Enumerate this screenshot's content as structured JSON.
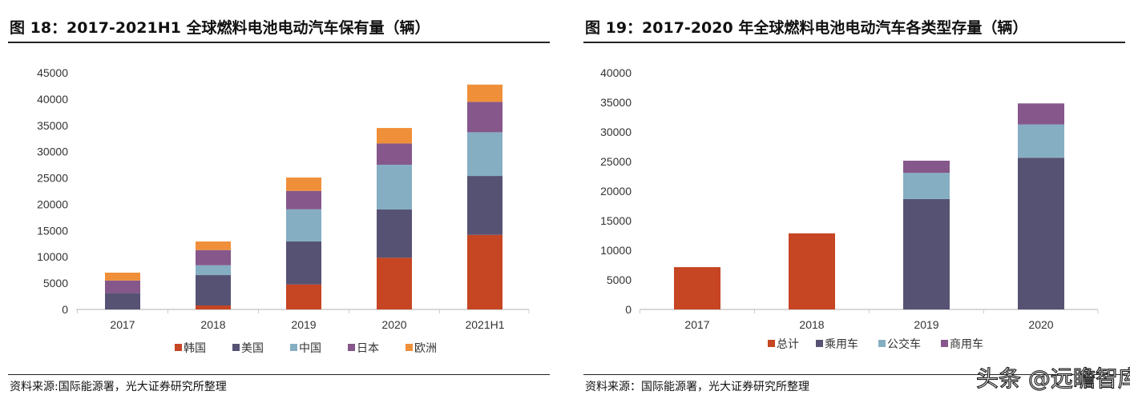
{
  "charts": [
    {
      "title": "图 18：2017-2021H1 全球燃料电池电动汽车保有量（辆）",
      "source": "资料来源:国际能源署，光大证券研究所整理"
    },
    {
      "title": "图 19：2017-2020 年全球燃料电池电动汽车各类型存量（辆）",
      "source": "资料来源：国际能源署，光大证券研究所整理"
    }
  ],
  "watermark": "头条 @远瞻智库",
  "chart_data": [
    {
      "type": "bar",
      "stacked": true,
      "categories": [
        "2017",
        "2018",
        "2019",
        "2020",
        "2021H1"
      ],
      "ylim": [
        0,
        45000
      ],
      "yticks": [
        0,
        5000,
        10000,
        15000,
        20000,
        25000,
        30000,
        35000,
        40000,
        45000
      ],
      "grid": false,
      "legend": "bottom",
      "series": [
        {
          "name": "韩国",
          "color": "#C64523",
          "values": [
            0,
            760,
            4760,
            9830,
            14180
          ]
        },
        {
          "name": "美国",
          "color": "#565273",
          "values": [
            3100,
            5770,
            8160,
            9170,
            11200
          ]
        },
        {
          "name": "中国",
          "color": "#86AEC3",
          "values": [
            0,
            1870,
            6120,
            8510,
            8310
          ]
        },
        {
          "name": "日本",
          "color": "#85578A",
          "values": [
            2400,
            2890,
            3500,
            4050,
            5780
          ]
        },
        {
          "name": "欧洲",
          "color": "#F08F3A",
          "values": [
            1500,
            1630,
            2540,
            2940,
            3280
          ]
        }
      ]
    },
    {
      "type": "bar",
      "stacked": true,
      "categories": [
        "2017",
        "2018",
        "2019",
        "2020"
      ],
      "ylim": [
        0,
        40000
      ],
      "yticks": [
        0,
        5000,
        10000,
        15000,
        20000,
        25000,
        30000,
        35000,
        40000
      ],
      "grid": false,
      "legend": "bottom",
      "series": [
        {
          "name": "总计",
          "color": "#C64523",
          "values": [
            7150,
            12860,
            0,
            0
          ]
        },
        {
          "name": "乘用车",
          "color": "#565273",
          "values": [
            0,
            0,
            18660,
            25640
          ]
        },
        {
          "name": "公交车",
          "color": "#86AEC3",
          "values": [
            0,
            0,
            4420,
            5620
          ]
        },
        {
          "name": "商用车",
          "color": "#85578A",
          "values": [
            0,
            0,
            2060,
            3560
          ]
        }
      ]
    }
  ]
}
